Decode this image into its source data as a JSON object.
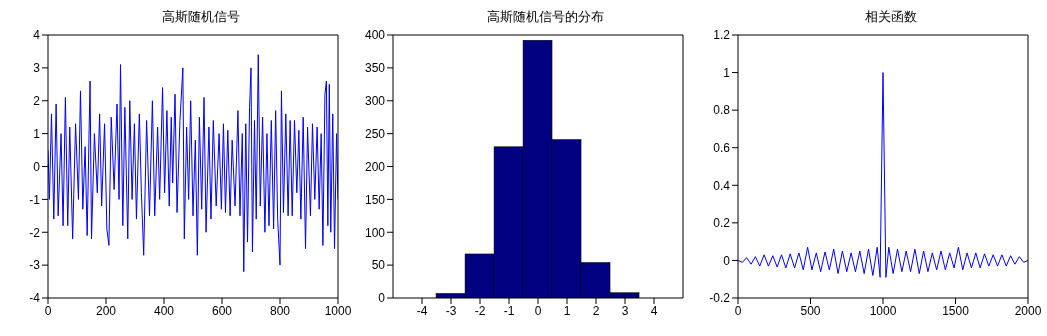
{
  "chart_data": [
    {
      "type": "line",
      "title": "高斯随机信号",
      "xlim": [
        0,
        1000
      ],
      "xticks": [
        0,
        200,
        400,
        600,
        800,
        1000
      ],
      "ylim": [
        -4,
        4
      ],
      "yticks": [
        -4,
        -3,
        -2,
        -1,
        0,
        1,
        2,
        3,
        4
      ],
      "grid": false,
      "legend": false,
      "series": [
        {
          "color": "#0000ff",
          "x": [
            0,
            5,
            12,
            20,
            28,
            35,
            45,
            52,
            60,
            68,
            75,
            85,
            95,
            105,
            112,
            120,
            128,
            135,
            145,
            150,
            160,
            170,
            178,
            185,
            195,
            203,
            210,
            218,
            228,
            238,
            245,
            250,
            258,
            265,
            275,
            282,
            290,
            298,
            305,
            315,
            322,
            330,
            340,
            350,
            360,
            368,
            378,
            385,
            395,
            402,
            410,
            418,
            425,
            430,
            438,
            445,
            455,
            465,
            470,
            478,
            485,
            492,
            500,
            508,
            515,
            522,
            530,
            538,
            545,
            555,
            562,
            570,
            580,
            590,
            598,
            605,
            612,
            620,
            628,
            635,
            645,
            655,
            662,
            670,
            675,
            682,
            688,
            695,
            700,
            705,
            712,
            718,
            725,
            732,
            740,
            748,
            755,
            762,
            770,
            778,
            785,
            792,
            800,
            805,
            812,
            820,
            828,
            835,
            842,
            850,
            858,
            865,
            872,
            880,
            888,
            895,
            905,
            912,
            920,
            928,
            935,
            942,
            948,
            955,
            960,
            965,
            970,
            975,
            982,
            988,
            995,
            1000
          ],
          "values": [
            0.5,
            -1.0,
            1.6,
            -1.6,
            1.9,
            -1.5,
            1.0,
            -1.8,
            2.1,
            -1.8,
            1.2,
            -2.2,
            1.3,
            -1.0,
            2.3,
            -1.3,
            0.6,
            -2.1,
            2.6,
            -2.2,
            1.0,
            -0.8,
            1.6,
            -1.2,
            1.3,
            -1.9,
            -2.4,
            1.5,
            -0.7,
            1.9,
            -1.0,
            3.1,
            -1.8,
            1.8,
            -2.2,
            2.0,
            -1.0,
            1.3,
            -1.6,
            1.6,
            -0.8,
            -2.7,
            1.4,
            -1.5,
            2.0,
            -1.5,
            1.2,
            -1.0,
            2.4,
            -0.8,
            1.7,
            -1.2,
            1.5,
            -0.5,
            2.2,
            -1.4,
            1.4,
            3.0,
            -2.2,
            1.2,
            -1.0,
            2.0,
            -1.5,
            0.8,
            -2.7,
            1.5,
            -1.3,
            2.1,
            -2.0,
            1.2,
            -1.6,
            1.4,
            -1.2,
            1.0,
            -1.3,
            1.3,
            -1.4,
            1.1,
            -1.5,
            0.8,
            -1.2,
            1.7,
            -1.5,
            1.0,
            -3.2,
            1.3,
            -2.3,
            1.8,
            3.0,
            -2.6,
            1.4,
            -1.6,
            3.4,
            -1.2,
            1.5,
            -2.0,
            1.0,
            -1.8,
            1.4,
            -1.9,
            1.7,
            -1.6,
            -3.0,
            2.3,
            -1.4,
            1.6,
            -1.5,
            1.4,
            -1.5,
            1.4,
            -0.8,
            1.1,
            -1.6,
            1.5,
            -2.5,
            1.2,
            -1.5,
            1.3,
            -1.0,
            1.2,
            -1.3,
            1.0,
            -2.4,
            2.2,
            2.6,
            -1.8,
            2.5,
            -2.0,
            1.6,
            -2.5,
            1.0,
            -1.0
          ]
        }
      ]
    },
    {
      "type": "histogram",
      "title": "高斯随机信号的分布",
      "xlim": [
        -5,
        5
      ],
      "xticks": [
        -4,
        -3,
        -2,
        -1,
        0,
        1,
        2,
        3,
        4
      ],
      "ylim": [
        0,
        400
      ],
      "yticks": [
        0,
        50,
        100,
        150,
        200,
        250,
        300,
        350,
        400
      ],
      "grid": false,
      "legend": false,
      "color": "#000080",
      "bins": [
        -4.5,
        -3.5,
        -2.5,
        -1.5,
        -0.5,
        0.5,
        1.5,
        2.5,
        3.5,
        4.5
      ],
      "values": [
        0,
        7,
        67,
        230,
        392,
        241,
        54,
        8,
        0
      ]
    },
    {
      "type": "line",
      "title": "相关函数",
      "xlim": [
        0,
        2000
      ],
      "xticks": [
        0,
        500,
        1000,
        1500,
        2000
      ],
      "ylim": [
        -0.2,
        1.2
      ],
      "yticks": [
        -0.2,
        0,
        0.2,
        0.4,
        0.6,
        0.8,
        1,
        1.2
      ],
      "grid": false,
      "legend": false,
      "series": [
        {
          "color": "#0000ff",
          "x": [
            0,
            30,
            60,
            90,
            120,
            150,
            180,
            210,
            240,
            270,
            300,
            330,
            360,
            390,
            420,
            450,
            480,
            510,
            540,
            570,
            600,
            630,
            660,
            690,
            720,
            750,
            780,
            810,
            840,
            870,
            900,
            930,
            960,
            980,
            1000,
            1020,
            1040,
            1070,
            1100,
            1130,
            1160,
            1190,
            1220,
            1250,
            1280,
            1310,
            1340,
            1370,
            1400,
            1430,
            1460,
            1490,
            1520,
            1550,
            1580,
            1610,
            1640,
            1670,
            1700,
            1730,
            1760,
            1790,
            1820,
            1850,
            1880,
            1910,
            1940,
            1970,
            2000
          ],
          "values": [
            0,
            -0.01,
            0.015,
            -0.02,
            0.02,
            -0.03,
            0.03,
            -0.03,
            0.025,
            -0.035,
            0.03,
            -0.04,
            0.035,
            -0.04,
            0.04,
            -0.05,
            0.07,
            -0.05,
            0.04,
            -0.06,
            0.045,
            -0.05,
            0.06,
            -0.07,
            0.05,
            -0.06,
            0.04,
            -0.06,
            0.05,
            -0.07,
            0.06,
            -0.08,
            0.07,
            -0.09,
            1,
            -0.09,
            0.07,
            -0.07,
            0.06,
            -0.06,
            0.05,
            -0.06,
            0.06,
            -0.07,
            0.05,
            -0.06,
            0.04,
            -0.05,
            0.05,
            -0.05,
            0.04,
            -0.04,
            0.07,
            -0.05,
            0.04,
            -0.04,
            0.04,
            -0.04,
            0.035,
            -0.03,
            0.03,
            -0.03,
            0.03,
            -0.03,
            0.025,
            -0.02,
            0.02,
            -0.01,
            0
          ]
        }
      ]
    }
  ]
}
